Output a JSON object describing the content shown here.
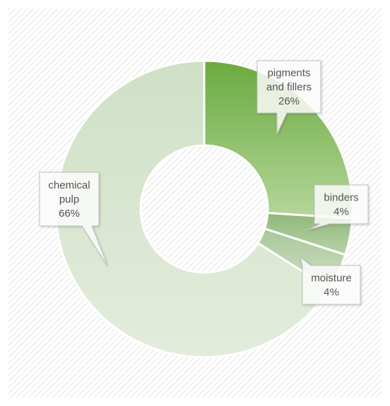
{
  "chart_data": {
    "type": "pie",
    "variant": "doughnut",
    "title": "",
    "legend": "none",
    "grid": false,
    "colors": {
      "background_hatch": "#d9d9d9",
      "slice_border": "#ffffff",
      "callout_border": "#bfbfbf",
      "callout_text": "#555555"
    },
    "slices": [
      {
        "name": "pigments and fillers",
        "label_lines": [
          "pigments",
          "and fillers",
          "26%"
        ],
        "value": 26,
        "color_start": "#6aab3e",
        "color_end": "#b5d69a"
      },
      {
        "name": "binders",
        "label_lines": [
          "binders",
          "4%"
        ],
        "value": 4,
        "color_start": "#8fb77a",
        "color_end": "#b8d3a8"
      },
      {
        "name": "moisture",
        "label_lines": [
          "moisture",
          "4%"
        ],
        "value": 4,
        "color_start": "#a9c69a",
        "color_end": "#cfe0c5"
      },
      {
        "name": "chemical pulp",
        "label_lines": [
          "chemical",
          "pulp",
          "66%"
        ],
        "value": 66,
        "color_start": "#cfe0c5",
        "color_end": "#e3ecdc"
      }
    ]
  }
}
